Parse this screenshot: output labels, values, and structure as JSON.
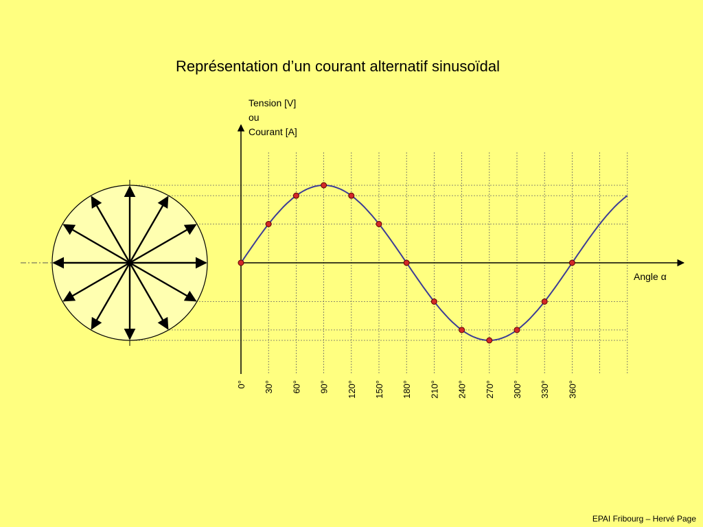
{
  "title": "Représentation d’un courant alternatif sinusoïdal",
  "y_axis_label_lines": [
    "Tension [V]",
    "ou",
    "Courant [A]"
  ],
  "x_axis_label": "Angle α",
  "footer": "EPAI Fribourg – Hervé Page",
  "colors": {
    "background": "#ffff80",
    "circle_fill": "#ffffb0",
    "curve": "#3c3c96",
    "points": "#d22828",
    "grid": "#666666"
  },
  "chart_data": {
    "type": "line",
    "function": "sin",
    "x": [
      0,
      30,
      60,
      90,
      120,
      150,
      180,
      210,
      240,
      270,
      300,
      330,
      360
    ],
    "y": [
      0,
      0.5,
      0.866,
      1,
      0.866,
      0.5,
      0,
      -0.5,
      -0.866,
      -1,
      -0.866,
      -0.5,
      0
    ],
    "x_tick_labels": [
      "0°",
      "30°",
      "60°",
      "90°",
      "120°",
      "150°",
      "180°",
      "210°",
      "240°",
      "270°",
      "300°",
      "330°",
      "360°"
    ],
    "xlim": [
      0,
      420
    ],
    "ylim": [
      -1,
      1
    ],
    "grid": true,
    "phasor_angles_deg": [
      0,
      30,
      60,
      90,
      120,
      150,
      180,
      210,
      240,
      270,
      300,
      330
    ]
  }
}
